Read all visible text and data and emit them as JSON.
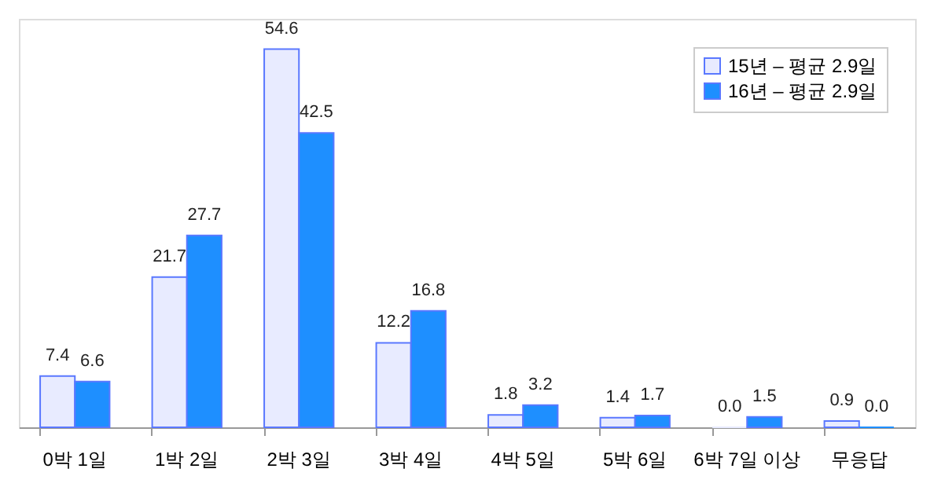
{
  "chart_data": {
    "type": "bar",
    "categories": [
      "0박 1일",
      "1박 2일",
      "2박 3일",
      "3박 4일",
      "4박 5일",
      "5박 6일",
      "6박 7일 이상",
      "무응답"
    ],
    "series": [
      {
        "name": "15년 – 평균 2.9일",
        "color": "#e8ebff",
        "values": [
          7.4,
          21.7,
          54.6,
          12.2,
          1.8,
          1.4,
          0.0,
          0.9
        ],
        "value_labels": [
          "7.4",
          "21.7",
          "54.6",
          "12.2",
          "1.8",
          "1.4",
          "0.0",
          "0.9"
        ]
      },
      {
        "name": "16년 – 평균 2.9일",
        "color": "#1e8fff",
        "values": [
          6.6,
          27.7,
          42.5,
          16.8,
          3.2,
          1.7,
          1.5,
          0.0
        ],
        "value_labels": [
          "6.6",
          "27.7",
          "42.5",
          "16.8",
          "3.2",
          "1.7",
          "1.5",
          "0.0"
        ]
      }
    ],
    "legend": "top right",
    "grid": false
  }
}
